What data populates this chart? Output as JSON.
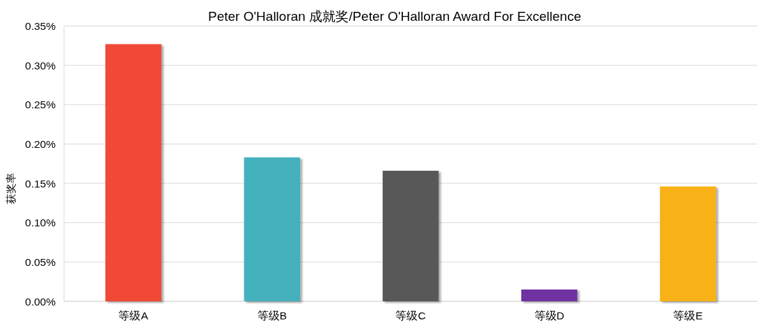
{
  "chart_data": {
    "type": "bar",
    "title": "Peter O'Halloran 成就奖/Peter O'Halloran Award For Excellence",
    "ylabel": "获奖率",
    "categories": [
      "等级A",
      "等级B",
      "等级C",
      "等级D",
      "等级E"
    ],
    "values": [
      0.327,
      0.183,
      0.166,
      0.015,
      0.146
    ],
    "colors": [
      "#f04a35",
      "#45b1bd",
      "#595959",
      "#7030a0",
      "#f8b117"
    ],
    "ylim": [
      0,
      0.35
    ],
    "yticks": [
      {
        "value": 0,
        "label": "0.00%"
      },
      {
        "value": 0.05,
        "label": "0.05%"
      },
      {
        "value": 0.1,
        "label": "0.10%"
      },
      {
        "value": 0.15,
        "label": "0.15%"
      },
      {
        "value": 0.2,
        "label": "0.20%"
      },
      {
        "value": 0.25,
        "label": "0.25%"
      },
      {
        "value": 0.3,
        "label": "0.30%"
      },
      {
        "value": 0.35,
        "label": "0.35%"
      }
    ],
    "grid": "y"
  }
}
